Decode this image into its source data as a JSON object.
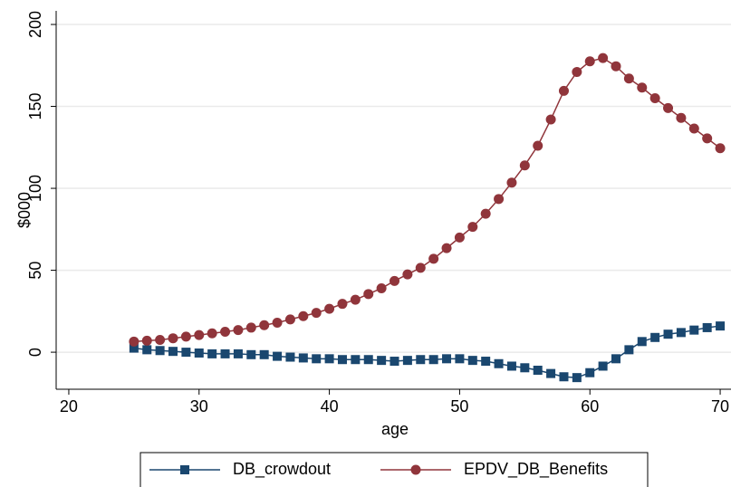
{
  "chart_data": {
    "type": "line",
    "x_label": "age",
    "y_label": "$000",
    "x": [
      25,
      26,
      27,
      28,
      29,
      30,
      31,
      32,
      33,
      34,
      35,
      36,
      37,
      38,
      39,
      40,
      41,
      42,
      43,
      44,
      45,
      46,
      47,
      48,
      49,
      50,
      51,
      52,
      53,
      54,
      55,
      56,
      57,
      58,
      59,
      60,
      61,
      62,
      63,
      64,
      65,
      66,
      67,
      68,
      69,
      70
    ],
    "series": [
      {
        "name": "DB_crowdout",
        "color": "#1a476f",
        "marker": "square",
        "values": [
          2.5,
          1.5,
          1,
          0.5,
          0,
          -0.5,
          -1,
          -1,
          -1,
          -1.5,
          -1.5,
          -2.5,
          -3,
          -3.5,
          -4,
          -4,
          -4.5,
          -4.5,
          -4.5,
          -5,
          -5.5,
          -5,
          -4.5,
          -4.5,
          -4,
          -4,
          -5,
          -5.5,
          -7,
          -8.5,
          -9.5,
          -11,
          -13,
          -15,
          -15.5,
          -12.5,
          -8.5,
          -4,
          1.5,
          6.5,
          9,
          11,
          12,
          13.5,
          15,
          16
        ]
      },
      {
        "name": "EPDV_DB_Benefits",
        "color": "#90353b",
        "marker": "circle",
        "values": [
          6.5,
          7,
          7.5,
          8.5,
          9.5,
          10.5,
          11.5,
          12.5,
          13.5,
          15,
          16.5,
          18,
          20,
          22,
          24,
          26.5,
          29.5,
          32,
          35.5,
          39,
          43.5,
          47.5,
          51.5,
          57,
          63.5,
          70,
          76.5,
          84.5,
          93.5,
          103.5,
          114,
          126,
          142,
          159.5,
          171,
          177.5,
          179.5,
          174.5,
          167,
          161.5,
          155,
          149,
          143,
          136.5,
          130.5,
          124.5
        ]
      }
    ],
    "xlim": [
      19.03,
      70.83
    ],
    "xticks": [
      20,
      30,
      40,
      50,
      60,
      70
    ],
    "ylim": [
      -22.6,
      208.3
    ],
    "yticks": [
      0,
      50,
      100,
      150,
      200
    ],
    "grid": true,
    "legend": "bottom"
  }
}
